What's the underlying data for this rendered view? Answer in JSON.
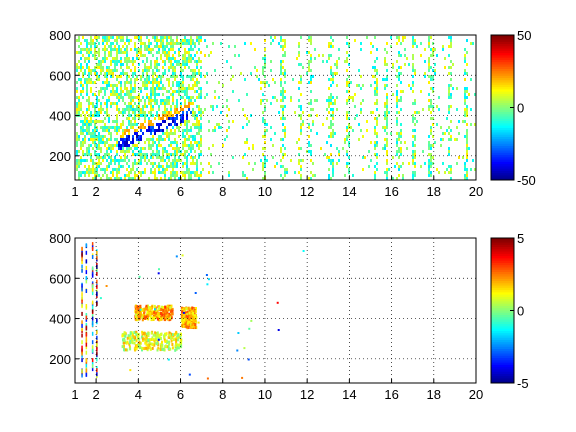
{
  "chart_data": [
    {
      "type": "heatmap",
      "title": "",
      "xlabel": "",
      "ylabel": "",
      "xlim": [
        1,
        20
      ],
      "ylim": [
        80,
        800
      ],
      "xticks": [
        1,
        2,
        4,
        6,
        8,
        10,
        12,
        14,
        16,
        18,
        20
      ],
      "yticks": [
        200,
        400,
        600,
        800
      ],
      "grid": true,
      "colorbar": {
        "colormap": "jet",
        "range": [
          -50,
          50
        ],
        "ticks": [
          50,
          0,
          -50
        ]
      },
      "dense_region": {
        "x_range": [
          1,
          7
        ],
        "y_range": [
          100,
          780
        ]
      },
      "feature_band": {
        "x_range": [
          3,
          6.5
        ],
        "y_start": 260,
        "y_end": 420,
        "sign": "negative"
      },
      "stripe_columns_x": [
        9.9,
        10.8,
        11.6,
        12.1,
        13.1,
        13.9,
        15.2,
        15.7,
        16.3,
        17.0,
        17.8,
        18.7,
        19.5
      ]
    },
    {
      "type": "heatmap",
      "title": "",
      "xlabel": "",
      "ylabel": "",
      "xlim": [
        1,
        20
      ],
      "ylim": [
        80,
        800
      ],
      "xticks": [
        1,
        2,
        4,
        6,
        8,
        10,
        12,
        14,
        16,
        18,
        20
      ],
      "yticks": [
        200,
        400,
        600,
        800
      ],
      "grid": true,
      "colorbar": {
        "colormap": "jet",
        "range": [
          -5,
          5
        ],
        "ticks": [
          5,
          0,
          -5
        ]
      },
      "clusters": [
        {
          "x_range": [
            3.2,
            6.0
          ],
          "y_range": [
            250,
            340
          ],
          "dominant_value": 1
        },
        {
          "x_range": [
            3.8,
            5.6
          ],
          "y_range": [
            400,
            470
          ],
          "dominant_value": 2
        },
        {
          "x_range": [
            6.0,
            6.7
          ],
          "y_range": [
            360,
            460
          ],
          "dominant_value": 2
        }
      ],
      "vertical_streaks_x": [
        1.3,
        1.5,
        1.8,
        2.0
      ]
    }
  ]
}
